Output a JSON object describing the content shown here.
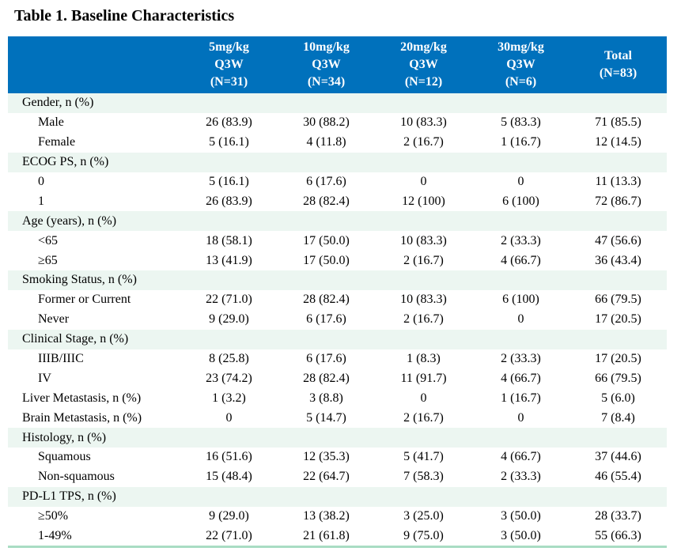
{
  "title": "Table 1. Baseline Characteristics",
  "colors": {
    "header_bg": "#0071bc",
    "header_text": "#ffffff",
    "category_row_bg": "#ecf6f1",
    "table_bottom_border": "#a9dcc3",
    "body_text": "#000000"
  },
  "table": {
    "columns": [
      {
        "lines": [
          "5mg/kg",
          "Q3W",
          "(N=31)"
        ]
      },
      {
        "lines": [
          "10mg/kg",
          "Q3W",
          "(N=34)"
        ]
      },
      {
        "lines": [
          "20mg/kg",
          "Q3W",
          "(N=12)"
        ]
      },
      {
        "lines": [
          "30mg/kg",
          "Q3W",
          "(N=6)"
        ]
      },
      {
        "lines": [
          "Total",
          "(N=83)"
        ]
      }
    ],
    "rows": [
      {
        "type": "category",
        "label": "Gender, n (%)",
        "values": [
          "",
          "",
          "",
          "",
          ""
        ]
      },
      {
        "type": "sub",
        "label": "Male",
        "values": [
          "26 (83.9)",
          "30 (88.2)",
          "10 (83.3)",
          "5 (83.3)",
          "71 (85.5)"
        ]
      },
      {
        "type": "sub",
        "label": "Female",
        "values": [
          "5 (16.1)",
          "4 (11.8)",
          "2 (16.7)",
          "1 (16.7)",
          "12 (14.5)"
        ]
      },
      {
        "type": "category",
        "label": "ECOG PS, n (%)",
        "values": [
          "",
          "",
          "",
          "",
          ""
        ]
      },
      {
        "type": "sub",
        "label": "0",
        "values": [
          "5 (16.1)",
          "6 (17.6)",
          "0",
          "0",
          "11 (13.3)"
        ]
      },
      {
        "type": "sub",
        "label": "1",
        "values": [
          "26 (83.9)",
          "28 (82.4)",
          "12 (100)",
          "6 (100)",
          "72 (86.7)"
        ]
      },
      {
        "type": "category",
        "label": "Age (years), n (%)",
        "values": [
          "",
          "",
          "",
          "",
          ""
        ]
      },
      {
        "type": "sub",
        "label": "<65",
        "values": [
          "18 (58.1)",
          "17 (50.0)",
          "10 (83.3)",
          "2 (33.3)",
          "47 (56.6)"
        ]
      },
      {
        "type": "sub",
        "label": "≥65",
        "values": [
          "13 (41.9)",
          "17 (50.0)",
          "2 (16.7)",
          "4 (66.7)",
          "36 (43.4)"
        ]
      },
      {
        "type": "category",
        "label": "Smoking Status, n (%)",
        "values": [
          "",
          "",
          "",
          "",
          ""
        ]
      },
      {
        "type": "sub",
        "label": "Former or Current",
        "values": [
          "22 (71.0)",
          "28 (82.4)",
          "10 (83.3)",
          "6 (100)",
          "66 (79.5)"
        ]
      },
      {
        "type": "sub",
        "label": "Never",
        "values": [
          "9 (29.0)",
          "6 (17.6)",
          "2 (16.7)",
          "0",
          "17 (20.5)"
        ]
      },
      {
        "type": "category",
        "label": "Clinical Stage, n (%)",
        "values": [
          "",
          "",
          "",
          "",
          ""
        ]
      },
      {
        "type": "sub",
        "label": "IIIB/IIIC",
        "values": [
          "8 (25.8)",
          "6 (17.6)",
          "1 (8.3)",
          "2 (33.3)",
          "17 (20.5)"
        ]
      },
      {
        "type": "sub",
        "label": "IV",
        "values": [
          "23 (74.2)",
          "28 (82.4)",
          "11 (91.7)",
          "4 (66.7)",
          "66 (79.5)"
        ]
      },
      {
        "type": "flat",
        "label": "Liver Metastasis, n (%)",
        "values": [
          "1 (3.2)",
          "3 (8.8)",
          "0",
          "1 (16.7)",
          "5 (6.0)"
        ]
      },
      {
        "type": "flat",
        "label": "Brain Metastasis, n (%)",
        "values": [
          "0",
          "5 (14.7)",
          "2 (16.7)",
          "0",
          "7 (8.4)"
        ]
      },
      {
        "type": "category",
        "label": "Histology, n (%)",
        "values": [
          "",
          "",
          "",
          "",
          ""
        ]
      },
      {
        "type": "sub",
        "label": "Squamous",
        "values": [
          "16 (51.6)",
          "12 (35.3)",
          "5 (41.7)",
          "4 (66.7)",
          "37 (44.6)"
        ]
      },
      {
        "type": "sub",
        "label": "Non-squamous",
        "values": [
          "15 (48.4)",
          "22 (64.7)",
          "7 (58.3)",
          "2 (33.3)",
          "46 (55.4)"
        ]
      },
      {
        "type": "category",
        "label": "PD-L1 TPS, n (%)",
        "values": [
          "",
          "",
          "",
          "",
          ""
        ]
      },
      {
        "type": "sub",
        "label": "≥50%",
        "values": [
          "9 (29.0)",
          "13 (38.2)",
          "3 (25.0)",
          "3 (50.0)",
          "28 (33.7)"
        ]
      },
      {
        "type": "sub",
        "label": "1-49%",
        "values": [
          "22 (71.0)",
          "21 (61.8)",
          "9 (75.0)",
          "3 (50.0)",
          "55 (66.3)"
        ]
      }
    ]
  }
}
